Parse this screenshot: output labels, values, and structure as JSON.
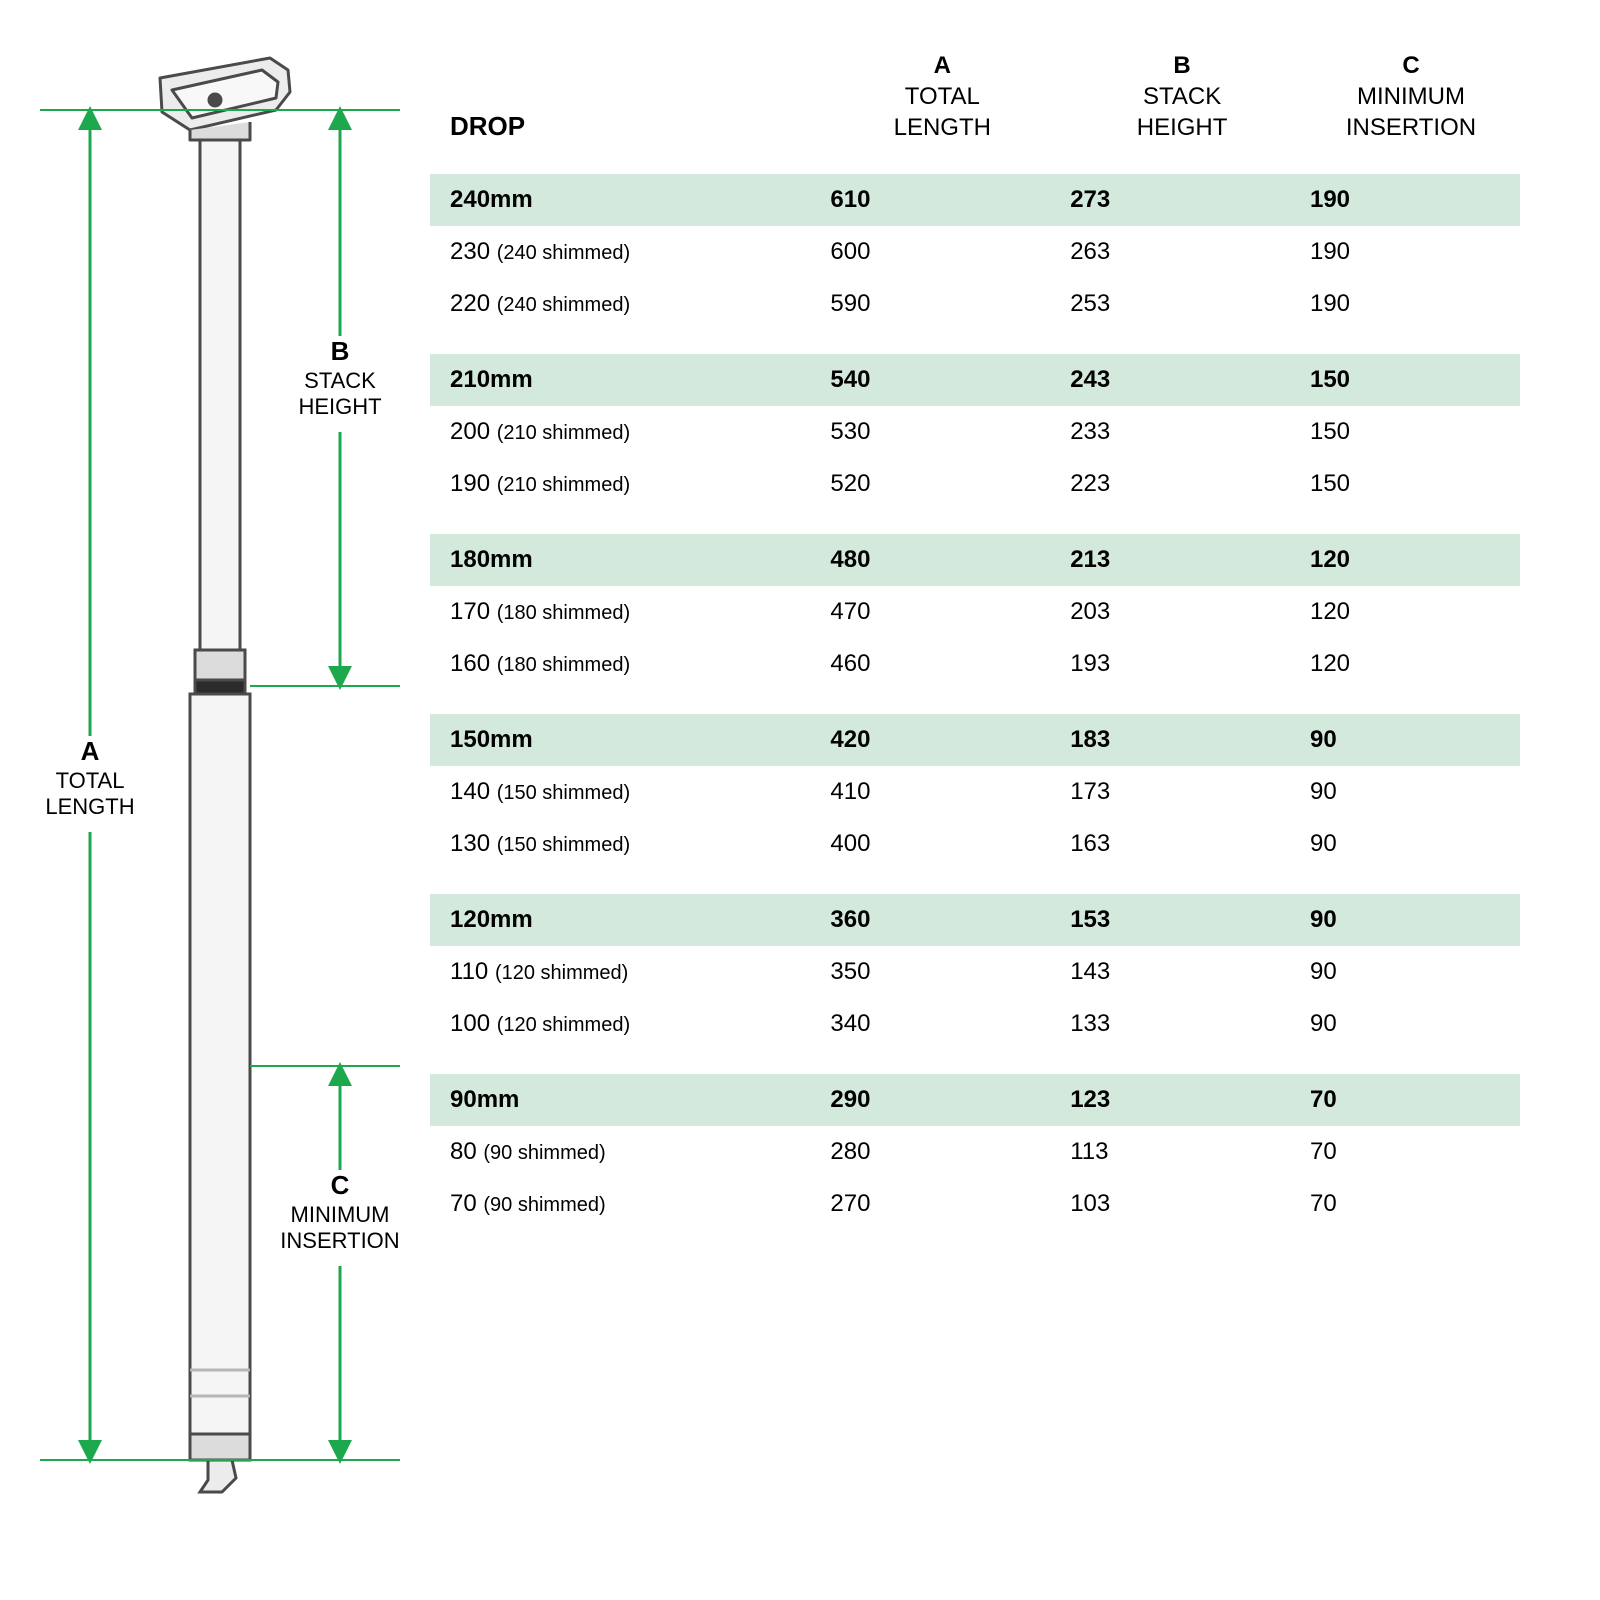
{
  "colors": {
    "highlight_bg": "#d3e9db",
    "arrow": "#1ea84d",
    "post_stroke": "#4a4a4a",
    "post_fill_light": "#f5f5f5",
    "post_fill_mid": "#dcdcdc",
    "post_black": "#2b2b2b",
    "text": "#000000"
  },
  "diagram_labels": {
    "A": {
      "letter": "A",
      "line1": "TOTAL",
      "line2": "LENGTH"
    },
    "B": {
      "letter": "B",
      "line1": "STACK",
      "line2": "HEIGHT"
    },
    "C": {
      "letter": "C",
      "line1": "MINIMUM",
      "line2": "INSERTION"
    }
  },
  "table": {
    "headers": {
      "drop": "DROP",
      "A": {
        "letter": "A",
        "line1": "TOTAL",
        "line2": "LENGTH"
      },
      "B": {
        "letter": "B",
        "line1": "STACK",
        "line2": "HEIGHT"
      },
      "C": {
        "letter": "C",
        "line1": "MINIMUM",
        "line2": "INSERTION"
      }
    },
    "groups": [
      {
        "main": {
          "drop": "240mm",
          "a": "610",
          "b": "273",
          "c": "190"
        },
        "sub": [
          {
            "drop": "230",
            "shim": "(240 shimmed)",
            "a": "600",
            "b": "263",
            "c": "190"
          },
          {
            "drop": "220",
            "shim": "(240 shimmed)",
            "a": "590",
            "b": "253",
            "c": "190"
          }
        ]
      },
      {
        "main": {
          "drop": "210mm",
          "a": "540",
          "b": "243",
          "c": "150"
        },
        "sub": [
          {
            "drop": "200",
            "shim": "(210 shimmed)",
            "a": "530",
            "b": "233",
            "c": "150"
          },
          {
            "drop": "190",
            "shim": "(210 shimmed)",
            "a": "520",
            "b": "223",
            "c": "150"
          }
        ]
      },
      {
        "main": {
          "drop": "180mm",
          "a": "480",
          "b": "213",
          "c": "120"
        },
        "sub": [
          {
            "drop": "170",
            "shim": "(180 shimmed)",
            "a": "470",
            "b": "203",
            "c": "120"
          },
          {
            "drop": "160",
            "shim": "(180 shimmed)",
            "a": "460",
            "b": "193",
            "c": "120"
          }
        ]
      },
      {
        "main": {
          "drop": "150mm",
          "a": "420",
          "b": "183",
          "c": "90"
        },
        "sub": [
          {
            "drop": "140",
            "shim": "(150 shimmed)",
            "a": "410",
            "b": "173",
            "c": "90"
          },
          {
            "drop": "130",
            "shim": "(150 shimmed)",
            "a": "400",
            "b": "163",
            "c": "90"
          }
        ]
      },
      {
        "main": {
          "drop": "120mm",
          "a": "360",
          "b": "153",
          "c": "90"
        },
        "sub": [
          {
            "drop": "110",
            "shim": "(120 shimmed)",
            "a": "350",
            "b": "143",
            "c": "90"
          },
          {
            "drop": "100",
            "shim": "(120 shimmed)",
            "a": "340",
            "b": "133",
            "c": "90"
          }
        ]
      },
      {
        "main": {
          "drop": "90mm",
          "a": "290",
          "b": "123",
          "c": "70"
        },
        "sub": [
          {
            "drop": "80",
            "shim": "(90 shimmed)",
            "a": "280",
            "b": "113",
            "c": "70"
          },
          {
            "drop": "70",
            "shim": "(90 shimmed)",
            "a": "270",
            "b": "103",
            "c": "70"
          }
        ]
      }
    ]
  }
}
